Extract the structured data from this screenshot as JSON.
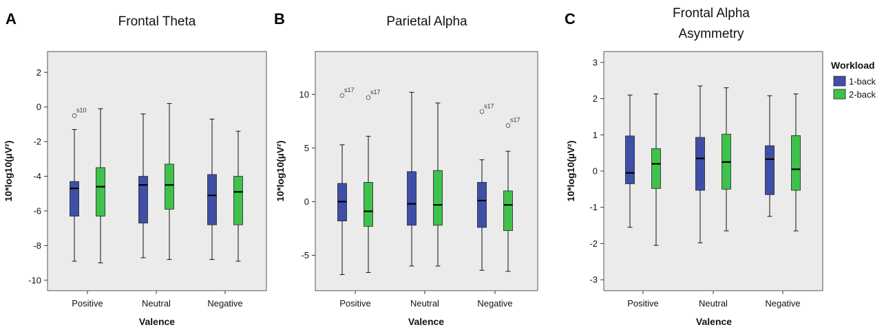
{
  "colors": {
    "one_back": "#3f4fa8",
    "two_back": "#3ec24b",
    "plot_bg": "#ebebeb"
  },
  "legend": {
    "title": "Workload",
    "items": [
      {
        "label": "1-back",
        "color": "#3f4fa8"
      },
      {
        "label": "2-back",
        "color": "#3ec24b"
      }
    ]
  },
  "chart_data": [
    {
      "panel": "A",
      "type": "box",
      "title_lines": [
        "Frontal Theta"
      ],
      "xlabel": "Valence",
      "ylabel": "10*log10(µV²)",
      "categories": [
        "Positive",
        "Neutral",
        "Negative"
      ],
      "ylim": [
        -10.6,
        3.2
      ],
      "yticks": [
        2,
        0,
        -2,
        -4,
        -6,
        -8,
        -10
      ],
      "series": [
        {
          "name": "1-back",
          "boxes": [
            {
              "category": "Positive",
              "min": -8.9,
              "q1": -6.3,
              "median": -4.7,
              "q3": -4.3,
              "max": -1.3,
              "outliers": [
                {
                  "value": -0.5,
                  "label": "s10"
                }
              ]
            },
            {
              "category": "Neutral",
              "min": -8.7,
              "q1": -6.7,
              "median": -4.5,
              "q3": -4.0,
              "max": -0.4,
              "outliers": []
            },
            {
              "category": "Negative",
              "min": -8.8,
              "q1": -6.8,
              "median": -5.1,
              "q3": -3.9,
              "max": -0.7,
              "outliers": []
            }
          ]
        },
        {
          "name": "2-back",
          "boxes": [
            {
              "category": "Positive",
              "min": -9.0,
              "q1": -6.3,
              "median": -4.6,
              "q3": -3.5,
              "max": -0.1,
              "outliers": []
            },
            {
              "category": "Neutral",
              "min": -8.8,
              "q1": -5.9,
              "median": -4.5,
              "q3": -3.3,
              "max": 0.2,
              "outliers": []
            },
            {
              "category": "Negative",
              "min": -8.9,
              "q1": -6.8,
              "median": -4.9,
              "q3": -4.0,
              "max": -1.4,
              "outliers": []
            }
          ]
        }
      ]
    },
    {
      "panel": "B",
      "type": "box",
      "title_lines": [
        "Parietal Alpha"
      ],
      "xlabel": "Valence",
      "ylabel": "10*log10(µV²)",
      "categories": [
        "Positive",
        "Neutral",
        "Negative"
      ],
      "ylim": [
        -8.3,
        14.0
      ],
      "yticks": [
        10,
        5,
        0,
        -5
      ],
      "series": [
        {
          "name": "1-back",
          "boxes": [
            {
              "category": "Positive",
              "min": -6.8,
              "q1": -1.8,
              "median": 0.0,
              "q3": 1.7,
              "max": 5.3,
              "outliers": [
                {
                  "value": 9.9,
                  "label": "s17"
                }
              ]
            },
            {
              "category": "Neutral",
              "min": -6.0,
              "q1": -2.2,
              "median": -0.2,
              "q3": 2.8,
              "max": 10.2,
              "outliers": []
            },
            {
              "category": "Negative",
              "min": -6.4,
              "q1": -2.4,
              "median": 0.1,
              "q3": 1.8,
              "max": 3.9,
              "outliers": [
                {
                  "value": 8.4,
                  "label": "s17"
                }
              ]
            }
          ]
        },
        {
          "name": "2-back",
          "boxes": [
            {
              "category": "Positive",
              "min": -6.6,
              "q1": -2.3,
              "median": -0.9,
              "q3": 1.8,
              "max": 6.1,
              "outliers": [
                {
                  "value": 9.7,
                  "label": "s17"
                }
              ]
            },
            {
              "category": "Neutral",
              "min": -6.0,
              "q1": -2.2,
              "median": -0.3,
              "q3": 2.9,
              "max": 9.2,
              "outliers": []
            },
            {
              "category": "Negative",
              "min": -6.5,
              "q1": -2.7,
              "median": -0.3,
              "q3": 1.0,
              "max": 4.7,
              "outliers": [
                {
                  "value": 7.1,
                  "label": "s17"
                }
              ]
            }
          ]
        }
      ]
    },
    {
      "panel": "C",
      "type": "box",
      "title_lines": [
        "Frontal Alpha",
        "Asymmetry"
      ],
      "xlabel": "Valence",
      "ylabel": "10*log10(µV²)",
      "categories": [
        "Positive",
        "Neutral",
        "Negative"
      ],
      "ylim": [
        -3.3,
        3.3
      ],
      "yticks": [
        3,
        2,
        1,
        0,
        -1,
        -2,
        -3
      ],
      "series": [
        {
          "name": "1-back",
          "boxes": [
            {
              "category": "Positive",
              "min": -1.55,
              "q1": -0.35,
              "median": -0.05,
              "q3": 0.97,
              "max": 2.1,
              "outliers": []
            },
            {
              "category": "Neutral",
              "min": -1.98,
              "q1": -0.53,
              "median": 0.35,
              "q3": 0.93,
              "max": 2.35,
              "outliers": []
            },
            {
              "category": "Negative",
              "min": -1.25,
              "q1": -0.65,
              "median": 0.33,
              "q3": 0.7,
              "max": 2.08,
              "outliers": []
            }
          ]
        },
        {
          "name": "2-back",
          "boxes": [
            {
              "category": "Positive",
              "min": -2.05,
              "q1": -0.48,
              "median": 0.2,
              "q3": 0.62,
              "max": 2.13,
              "outliers": []
            },
            {
              "category": "Neutral",
              "min": -1.65,
              "q1": -0.5,
              "median": 0.25,
              "q3": 1.02,
              "max": 2.3,
              "outliers": []
            },
            {
              "category": "Negative",
              "min": -1.65,
              "q1": -0.53,
              "median": 0.05,
              "q3": 0.98,
              "max": 2.13,
              "outliers": []
            }
          ]
        }
      ]
    }
  ]
}
